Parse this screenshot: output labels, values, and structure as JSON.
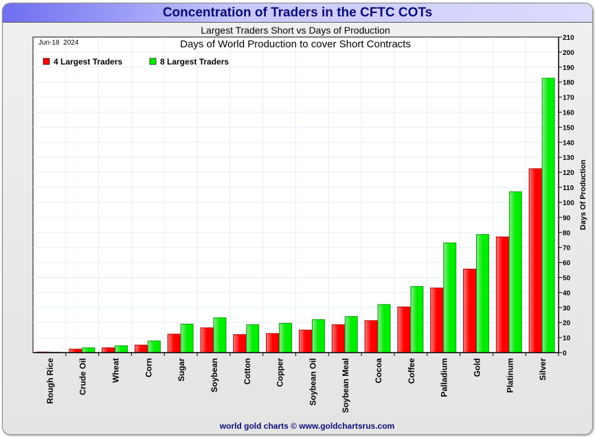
{
  "header": {
    "title": "Concentration of Traders in the CFTC COTs"
  },
  "chart_data": {
    "type": "bar",
    "title": "Largest Traders Short vs Days of Production",
    "subtitle": "Days of World Production to cover Short Contracts",
    "date": "Jun-18  2024",
    "ylabel": "Days Of Production",
    "ylim": [
      0,
      210
    ],
    "ytick_step": 10,
    "grid": true,
    "legend": "top-left",
    "categories": [
      "Rough Rice",
      "Crude Oil",
      "Wheat",
      "Corn",
      "Sugar",
      "Soybean",
      "Cotton",
      "Copper",
      "Soybean Oil",
      "Soybean Meal",
      "Cocoa",
      "Coffee",
      "Palladium",
      "Gold",
      "Platinum",
      "Silver"
    ],
    "series": [
      {
        "name": "4 Largest Traders",
        "color": "#ff0000",
        "values": [
          0.4,
          2.3,
          3.2,
          5,
          12.3,
          16.5,
          12,
          12.7,
          15,
          18.6,
          21.3,
          30.4,
          43,
          55.6,
          77,
          122.4
        ]
      },
      {
        "name": "8 Largest Traders",
        "color": "#00ee00",
        "values": [
          0.3,
          3.2,
          4.6,
          7.8,
          19,
          23.2,
          18.6,
          19.5,
          22,
          24,
          32,
          44,
          73,
          78.6,
          107,
          182.6
        ]
      }
    ]
  },
  "footer": {
    "credit": "world gold charts © www.goldchartsrus.com"
  }
}
